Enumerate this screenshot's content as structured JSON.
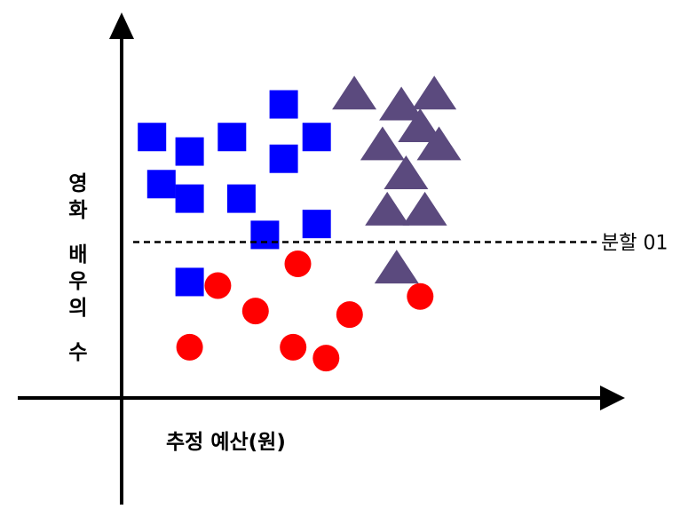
{
  "chart_data": {
    "type": "scatter",
    "ylabel": "영화 배우의 수",
    "xlabel": "추정 예산(원)",
    "split_line": {
      "label": "분할 01",
      "y": 4.3
    },
    "xlim": [
      0,
      10
    ],
    "ylim": [
      0,
      10
    ],
    "series": [
      {
        "marker": "square",
        "color": "#0000ff",
        "points": [
          [
            0.4,
            7.2
          ],
          [
            1.2,
            6.8
          ],
          [
            2.1,
            7.2
          ],
          [
            3.2,
            8.1
          ],
          [
            3.9,
            7.2
          ],
          [
            0.6,
            5.9
          ],
          [
            1.2,
            5.5
          ],
          [
            2.3,
            5.5
          ],
          [
            3.2,
            6.6
          ],
          [
            2.8,
            4.5
          ],
          [
            3.9,
            4.8
          ],
          [
            1.2,
            3.2
          ]
        ]
      },
      {
        "marker": "circle",
        "color": "#ff0000",
        "points": [
          [
            1.8,
            3.1
          ],
          [
            2.6,
            2.4
          ],
          [
            3.5,
            3.7
          ],
          [
            1.2,
            1.4
          ],
          [
            3.4,
            1.4
          ],
          [
            4.1,
            1.1
          ],
          [
            4.6,
            2.3
          ],
          [
            6.1,
            2.8
          ]
        ]
      },
      {
        "marker": "triangle",
        "color": "#5b4a7e",
        "points": [
          [
            4.7,
            8.4
          ],
          [
            5.3,
            7.0
          ],
          [
            5.7,
            8.1
          ],
          [
            6.4,
            8.4
          ],
          [
            6.1,
            7.5
          ],
          [
            6.5,
            7.0
          ],
          [
            5.8,
            6.2
          ],
          [
            5.4,
            5.2
          ],
          [
            6.2,
            5.2
          ],
          [
            5.6,
            3.6
          ]
        ]
      }
    ]
  }
}
